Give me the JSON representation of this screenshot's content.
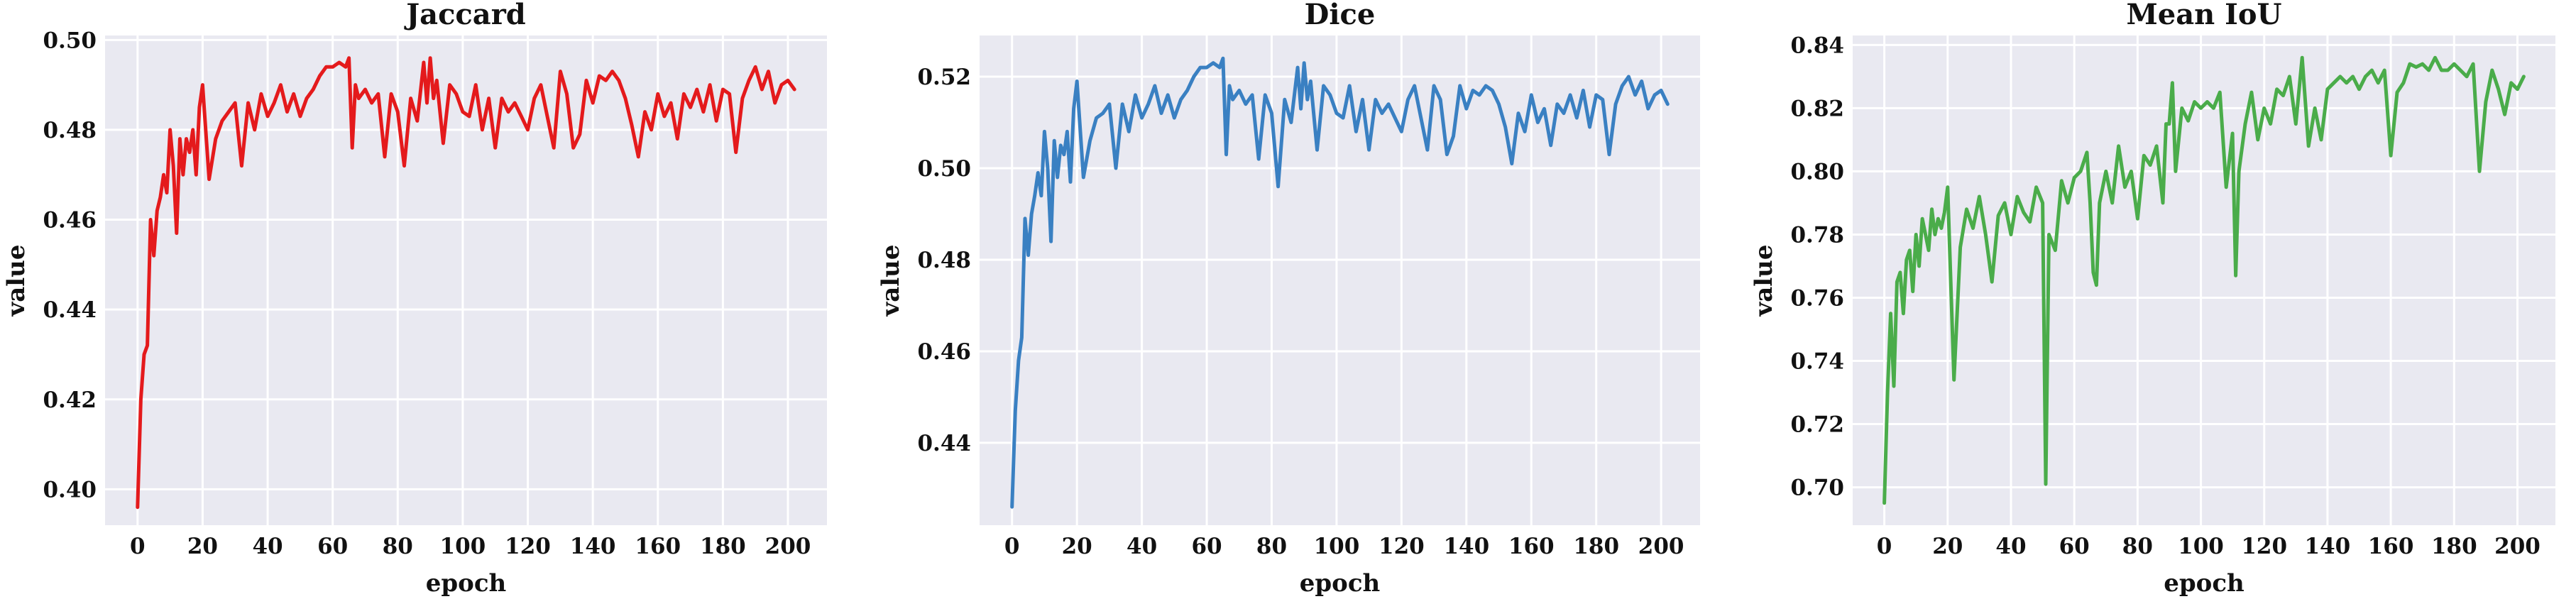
{
  "chart_data": [
    {
      "type": "line",
      "title": "Jaccard",
      "xlabel": "epoch",
      "ylabel": "value",
      "xlim": [
        -10,
        212
      ],
      "ylim": [
        0.392,
        0.501
      ],
      "xticks": [
        0,
        20,
        40,
        60,
        80,
        100,
        120,
        140,
        160,
        180,
        200
      ],
      "yticks": [
        0.4,
        0.42,
        0.44,
        0.46,
        0.48,
        0.5
      ],
      "grid": true,
      "color": "#e41a1c",
      "series": [
        {
          "x": [
            0,
            1,
            2,
            3,
            4,
            5,
            6,
            7,
            8,
            9,
            10,
            11,
            12,
            13,
            14,
            15,
            16,
            17,
            18,
            19,
            20,
            22,
            24,
            26,
            28,
            30,
            32,
            34,
            36,
            38,
            40,
            42,
            44,
            46,
            48,
            50,
            52,
            54,
            56,
            58,
            60,
            62,
            64,
            65,
            66,
            67,
            68,
            70,
            72,
            74,
            76,
            78,
            80,
            82,
            84,
            86,
            88,
            89,
            90,
            91,
            92,
            94,
            96,
            98,
            100,
            102,
            104,
            106,
            108,
            110,
            112,
            114,
            116,
            118,
            120,
            122,
            124,
            126,
            128,
            130,
            132,
            134,
            136,
            138,
            140,
            142,
            144,
            146,
            148,
            150,
            152,
            154,
            156,
            158,
            160,
            162,
            164,
            166,
            168,
            170,
            172,
            174,
            176,
            178,
            180,
            182,
            184,
            186,
            188,
            190,
            192,
            194,
            196,
            198,
            200,
            202
          ],
          "y": [
            0.396,
            0.42,
            0.43,
            0.432,
            0.46,
            0.452,
            0.462,
            0.465,
            0.47,
            0.466,
            0.48,
            0.472,
            0.457,
            0.478,
            0.47,
            0.478,
            0.475,
            0.48,
            0.47,
            0.485,
            0.49,
            0.469,
            0.478,
            0.482,
            0.484,
            0.486,
            0.472,
            0.486,
            0.48,
            0.488,
            0.483,
            0.486,
            0.49,
            0.484,
            0.488,
            0.483,
            0.487,
            0.489,
            0.492,
            0.494,
            0.494,
            0.495,
            0.494,
            0.496,
            0.476,
            0.49,
            0.487,
            0.489,
            0.486,
            0.488,
            0.474,
            0.488,
            0.484,
            0.472,
            0.487,
            0.482,
            0.495,
            0.486,
            0.496,
            0.487,
            0.491,
            0.477,
            0.49,
            0.488,
            0.484,
            0.483,
            0.49,
            0.48,
            0.487,
            0.476,
            0.487,
            0.484,
            0.486,
            0.483,
            0.48,
            0.487,
            0.49,
            0.483,
            0.476,
            0.493,
            0.488,
            0.476,
            0.479,
            0.491,
            0.486,
            0.492,
            0.491,
            0.493,
            0.491,
            0.487,
            0.481,
            0.474,
            0.484,
            0.48,
            0.488,
            0.483,
            0.486,
            0.478,
            0.488,
            0.485,
            0.489,
            0.484,
            0.49,
            0.482,
            0.489,
            0.488,
            0.475,
            0.487,
            0.491,
            0.494,
            0.489,
            0.493,
            0.486,
            0.49,
            0.491,
            0.489
          ]
        }
      ]
    },
    {
      "type": "line",
      "title": "Dice",
      "xlabel": "epoch",
      "ylabel": "value",
      "xlim": [
        -10,
        212
      ],
      "ylim": [
        0.422,
        0.529
      ],
      "xticks": [
        0,
        20,
        40,
        60,
        80,
        100,
        120,
        140,
        160,
        180,
        200
      ],
      "yticks": [
        0.44,
        0.46,
        0.48,
        0.5,
        0.52
      ],
      "grid": true,
      "color": "#3a80c2",
      "series": [
        {
          "x": [
            0,
            1,
            2,
            3,
            4,
            5,
            6,
            7,
            8,
            9,
            10,
            11,
            12,
            13,
            14,
            15,
            16,
            17,
            18,
            19,
            20,
            22,
            24,
            26,
            28,
            30,
            32,
            34,
            36,
            38,
            40,
            42,
            44,
            46,
            48,
            50,
            52,
            54,
            56,
            58,
            60,
            62,
            64,
            65,
            66,
            67,
            68,
            70,
            72,
            74,
            76,
            78,
            80,
            82,
            84,
            86,
            88,
            89,
            90,
            91,
            92,
            94,
            96,
            98,
            100,
            102,
            104,
            106,
            108,
            110,
            112,
            114,
            116,
            118,
            120,
            122,
            124,
            126,
            128,
            130,
            132,
            134,
            136,
            138,
            140,
            142,
            144,
            146,
            148,
            150,
            152,
            154,
            156,
            158,
            160,
            162,
            164,
            166,
            168,
            170,
            172,
            174,
            176,
            178,
            180,
            182,
            184,
            186,
            188,
            190,
            192,
            194,
            196,
            198,
            200,
            202
          ],
          "y": [
            0.426,
            0.447,
            0.458,
            0.463,
            0.489,
            0.481,
            0.49,
            0.494,
            0.499,
            0.494,
            0.508,
            0.5,
            0.484,
            0.506,
            0.498,
            0.505,
            0.503,
            0.508,
            0.497,
            0.513,
            0.519,
            0.498,
            0.506,
            0.511,
            0.512,
            0.514,
            0.5,
            0.514,
            0.508,
            0.516,
            0.511,
            0.514,
            0.518,
            0.512,
            0.516,
            0.511,
            0.515,
            0.517,
            0.52,
            0.522,
            0.522,
            0.523,
            0.522,
            0.524,
            0.503,
            0.518,
            0.515,
            0.517,
            0.514,
            0.516,
            0.502,
            0.516,
            0.512,
            0.496,
            0.515,
            0.51,
            0.522,
            0.513,
            0.523,
            0.515,
            0.519,
            0.504,
            0.518,
            0.516,
            0.512,
            0.511,
            0.518,
            0.508,
            0.515,
            0.504,
            0.515,
            0.512,
            0.514,
            0.511,
            0.508,
            0.515,
            0.518,
            0.511,
            0.504,
            0.518,
            0.515,
            0.503,
            0.507,
            0.518,
            0.513,
            0.517,
            0.516,
            0.518,
            0.517,
            0.514,
            0.509,
            0.501,
            0.512,
            0.508,
            0.516,
            0.51,
            0.513,
            0.505,
            0.514,
            0.512,
            0.516,
            0.511,
            0.517,
            0.509,
            0.516,
            0.515,
            0.503,
            0.514,
            0.518,
            0.52,
            0.516,
            0.519,
            0.513,
            0.516,
            0.517,
            0.514
          ]
        }
      ]
    },
    {
      "type": "line",
      "title": "Mean IoU",
      "xlabel": "epoch",
      "ylabel": "value",
      "xlim": [
        -10,
        212
      ],
      "ylim": [
        0.688,
        0.843
      ],
      "xticks": [
        0,
        20,
        40,
        60,
        80,
        100,
        120,
        140,
        160,
        180,
        200
      ],
      "yticks": [
        0.7,
        0.72,
        0.74,
        0.76,
        0.78,
        0.8,
        0.82,
        0.84
      ],
      "grid": true,
      "color": "#4aac4a",
      "series": [
        {
          "x": [
            0,
            1,
            2,
            3,
            4,
            5,
            6,
            7,
            8,
            9,
            10,
            11,
            12,
            13,
            14,
            15,
            16,
            17,
            18,
            19,
            20,
            22,
            24,
            26,
            28,
            30,
            32,
            34,
            36,
            38,
            40,
            42,
            44,
            46,
            48,
            50,
            51,
            52,
            54,
            56,
            58,
            60,
            62,
            64,
            65,
            66,
            67,
            68,
            70,
            72,
            74,
            76,
            78,
            80,
            82,
            84,
            86,
            88,
            89,
            90,
            91,
            92,
            94,
            96,
            98,
            100,
            102,
            104,
            106,
            108,
            110,
            111,
            112,
            114,
            116,
            118,
            120,
            122,
            124,
            126,
            128,
            130,
            132,
            134,
            136,
            138,
            140,
            142,
            144,
            146,
            148,
            150,
            152,
            154,
            156,
            158,
            160,
            162,
            164,
            166,
            168,
            170,
            172,
            174,
            176,
            178,
            180,
            182,
            184,
            186,
            188,
            190,
            192,
            194,
            196,
            198,
            200,
            202
          ],
          "y": [
            0.695,
            0.73,
            0.755,
            0.732,
            0.765,
            0.768,
            0.755,
            0.772,
            0.775,
            0.762,
            0.78,
            0.77,
            0.785,
            0.78,
            0.775,
            0.788,
            0.78,
            0.785,
            0.782,
            0.787,
            0.795,
            0.734,
            0.776,
            0.788,
            0.782,
            0.792,
            0.78,
            0.765,
            0.786,
            0.79,
            0.78,
            0.792,
            0.787,
            0.784,
            0.795,
            0.79,
            0.701,
            0.78,
            0.775,
            0.797,
            0.79,
            0.798,
            0.8,
            0.806,
            0.79,
            0.768,
            0.764,
            0.79,
            0.8,
            0.79,
            0.808,
            0.795,
            0.8,
            0.785,
            0.805,
            0.802,
            0.808,
            0.79,
            0.815,
            0.815,
            0.828,
            0.8,
            0.82,
            0.816,
            0.822,
            0.82,
            0.822,
            0.82,
            0.825,
            0.795,
            0.812,
            0.767,
            0.8,
            0.815,
            0.825,
            0.81,
            0.82,
            0.815,
            0.826,
            0.824,
            0.83,
            0.815,
            0.836,
            0.808,
            0.82,
            0.81,
            0.826,
            0.828,
            0.83,
            0.828,
            0.83,
            0.826,
            0.83,
            0.832,
            0.828,
            0.832,
            0.805,
            0.825,
            0.828,
            0.834,
            0.833,
            0.834,
            0.832,
            0.836,
            0.832,
            0.832,
            0.834,
            0.832,
            0.83,
            0.834,
            0.8,
            0.822,
            0.832,
            0.826,
            0.818,
            0.828,
            0.826,
            0.83
          ]
        }
      ]
    }
  ]
}
